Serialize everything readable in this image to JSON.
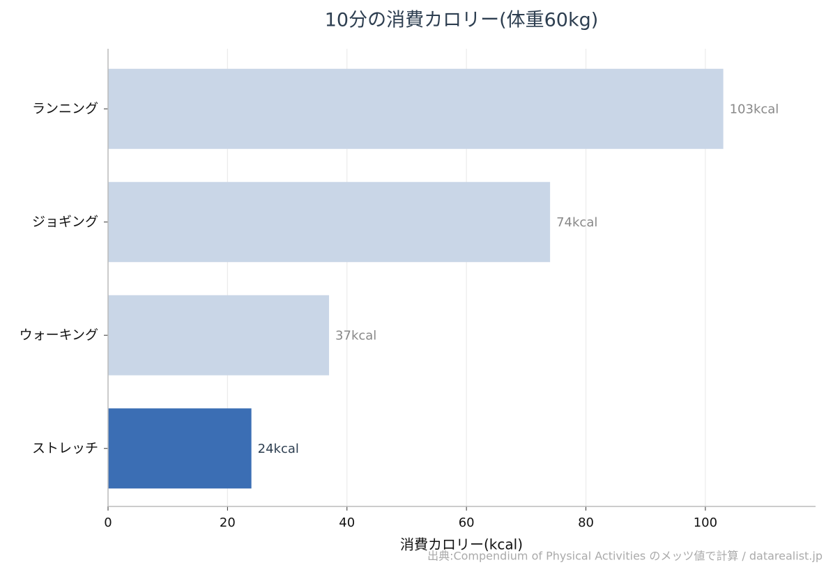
{
  "chart_data": {
    "type": "bar",
    "orientation": "horizontal",
    "title": "10分の消費カロリー(体重60kg)",
    "x_label": "消費カロリー(kcal)",
    "source": "出典:Compendium of Physical Activities のメッツ値で計算 / datarealist.jp",
    "categories": [
      "ランニング",
      "ジョギング",
      "ウォーキング",
      "ストレッチ"
    ],
    "values": [
      103,
      74,
      37,
      24
    ],
    "value_labels": [
      "103kcal",
      "74kcal",
      "37kcal",
      "24kcal"
    ],
    "colors": [
      "#c9d6e7",
      "#c9d6e7",
      "#c9d6e7",
      "#3b6eb4"
    ],
    "label_colors": [
      "#888888",
      "#888888",
      "#888888",
      "#2d3e50"
    ],
    "xlim": [
      0,
      118.45
    ],
    "xticks": [
      0,
      20,
      40,
      60,
      80,
      100
    ],
    "grid": true
  }
}
